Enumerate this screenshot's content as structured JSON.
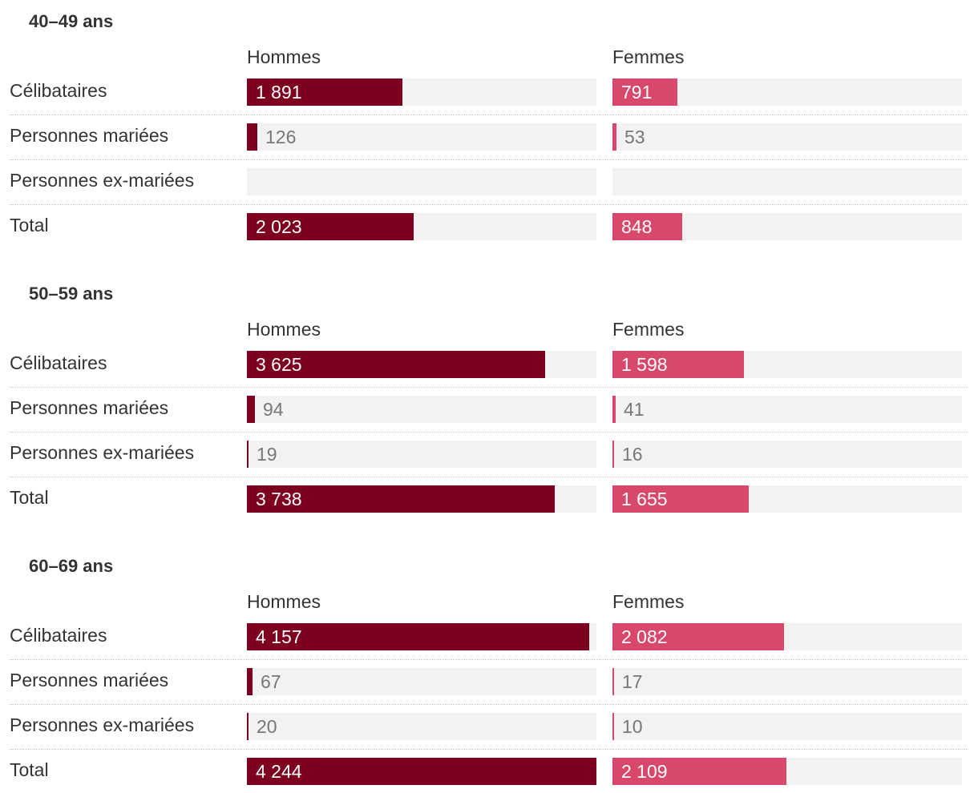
{
  "chart_data": [
    {
      "type": "bar",
      "title": "40–49 ans",
      "categories": [
        "Célibataires",
        "Personnes mariées",
        "Personnes ex-mariées",
        "Total"
      ],
      "series": [
        {
          "name": "Hommes",
          "color": "#7d0021",
          "values": [
            1891,
            126,
            null,
            2023
          ],
          "labels": [
            "1 891",
            "126",
            "",
            "2 023"
          ]
        },
        {
          "name": "Femmes",
          "color": "#d8486a",
          "values": [
            791,
            53,
            null,
            848
          ],
          "labels": [
            "791",
            "53",
            "",
            "848"
          ]
        }
      ],
      "xlim": [
        0,
        4244
      ]
    },
    {
      "type": "bar",
      "title": "50–59 ans",
      "categories": [
        "Célibataires",
        "Personnes mariées",
        "Personnes ex-mariées",
        "Total"
      ],
      "series": [
        {
          "name": "Hommes",
          "color": "#7d0021",
          "values": [
            3625,
            94,
            19,
            3738
          ],
          "labels": [
            "3 625",
            "94",
            "19",
            "3 738"
          ]
        },
        {
          "name": "Femmes",
          "color": "#d8486a",
          "values": [
            1598,
            41,
            16,
            1655
          ],
          "labels": [
            "1 598",
            "41",
            "16",
            "1 655"
          ]
        }
      ],
      "xlim": [
        0,
        4244
      ]
    },
    {
      "type": "bar",
      "title": "60–69 ans",
      "categories": [
        "Célibataires",
        "Personnes mariées",
        "Personnes ex-mariées",
        "Total"
      ],
      "series": [
        {
          "name": "Hommes",
          "color": "#7d0021",
          "values": [
            4157,
            67,
            20,
            4244
          ],
          "labels": [
            "4 157",
            "67",
            "20",
            "4 244"
          ]
        },
        {
          "name": "Femmes",
          "color": "#d8486a",
          "values": [
            2082,
            17,
            10,
            2109
          ],
          "labels": [
            "2 082",
            "17",
            "10",
            "2 109"
          ]
        }
      ],
      "xlim": [
        0,
        4244
      ]
    }
  ]
}
